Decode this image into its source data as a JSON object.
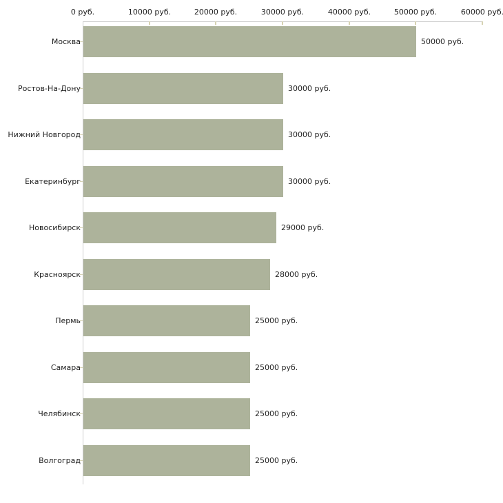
{
  "chart_data": {
    "type": "bar",
    "orientation": "horizontal",
    "title": "",
    "categories": [
      "Москва",
      "Ростов-На-Дону",
      "Нижний Новгород",
      "Екатеринбург",
      "Новосибирск",
      "Красноярск",
      "Пермь",
      "Самара",
      "Челябинск",
      "Волгоград"
    ],
    "values": [
      50000,
      30000,
      30000,
      30000,
      29000,
      28000,
      25000,
      25000,
      25000,
      25000
    ],
    "value_labels": [
      "50000 руб.",
      "30000 руб.",
      "30000 руб.",
      "30000 руб.",
      "29000 руб.",
      "28000 руб.",
      "25000 руб.",
      "25000 руб.",
      "25000 руб.",
      "25000 руб."
    ],
    "unit": "руб.",
    "x_axis": {
      "position": "top",
      "min": 0,
      "max": 60000,
      "tick_values": [
        0,
        10000,
        20000,
        30000,
        40000,
        50000,
        60000
      ],
      "tick_labels": [
        "0 руб.",
        "10000 руб.",
        "20000 руб.",
        "30000 руб.",
        "40000 руб.",
        "50000 руб.",
        "60000 руб."
      ]
    },
    "grid": false,
    "legend": false,
    "colors": {
      "bar": "#adb39b",
      "axis": "#cccccc",
      "tick": "#d6d2b2",
      "text": "#222222",
      "background": "#ffffff"
    }
  }
}
